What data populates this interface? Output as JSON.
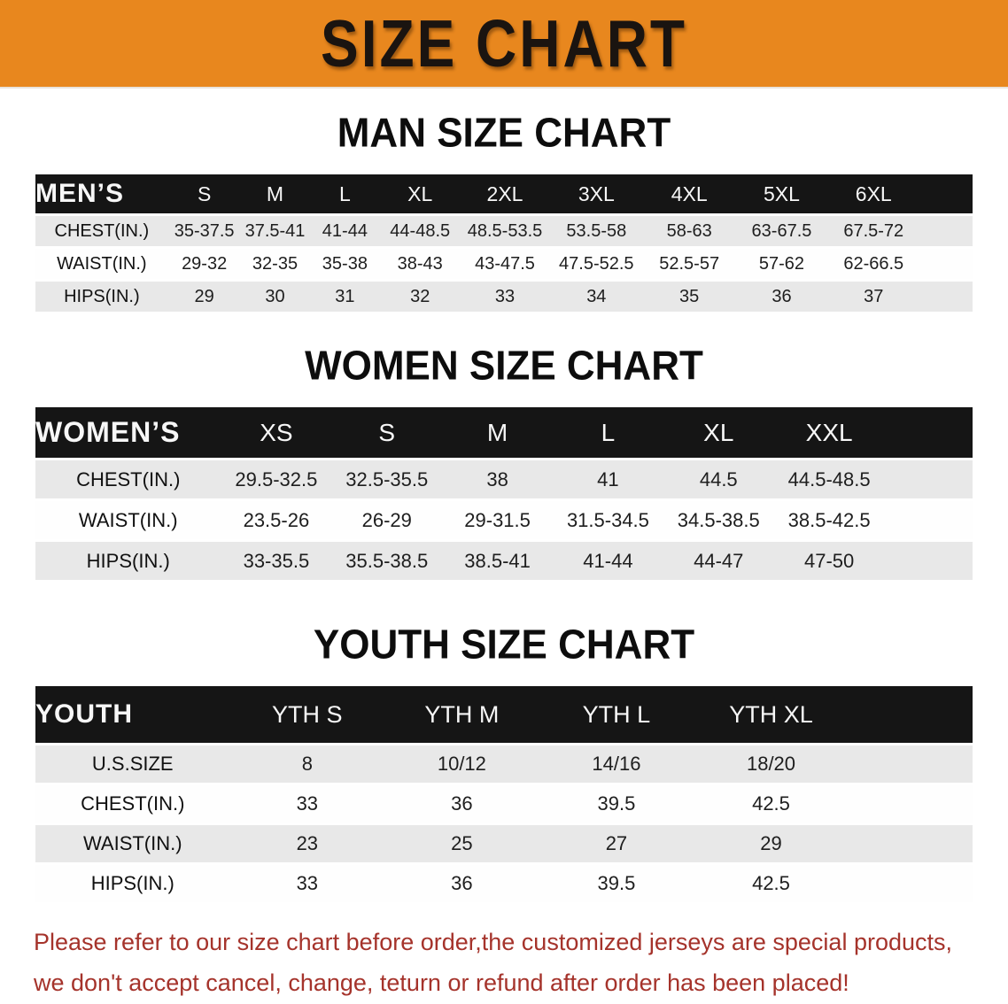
{
  "banner": {
    "title": "SIZE CHART",
    "colors": {
      "background": "#E8871E",
      "text": "#1A1410"
    }
  },
  "table_colors": {
    "header_band_background": "#151515",
    "header_band_text": "#F7F7F7",
    "row_shaded": "#E8E8E8",
    "row_plain": "#FEFEFE"
  },
  "sections": [
    {
      "id": "men",
      "title": "MAN SIZE CHART",
      "group_label": "MEN’S",
      "sizes": [
        "S",
        "M",
        "L",
        "XL",
        "2XL",
        "3XL",
        "4XL",
        "5XL",
        "6XL"
      ],
      "rows": [
        {
          "label": "CHEST(IN.)",
          "values": [
            "35-37.5",
            "37.5-41",
            "41-44",
            "44-48.5",
            "48.5-53.5",
            "53.5-58",
            "58-63",
            "63-67.5",
            "67.5-72"
          ]
        },
        {
          "label": "WAIST(IN.)",
          "values": [
            "29-32",
            "32-35",
            "35-38",
            "38-43",
            "43-47.5",
            "47.5-52.5",
            "52.5-57",
            "57-62",
            "62-66.5"
          ]
        },
        {
          "label": "HIPS(IN.)",
          "values": [
            "29",
            "30",
            "31",
            "32",
            "33",
            "34",
            "35",
            "36",
            "37"
          ]
        }
      ]
    },
    {
      "id": "women",
      "title": "WOMEN SIZE CHART",
      "group_label": "WOMEN’S",
      "sizes": [
        "XS",
        "S",
        "M",
        "L",
        "XL",
        "XXL"
      ],
      "rows": [
        {
          "label": "CHEST(IN.)",
          "values": [
            "29.5-32.5",
            "32.5-35.5",
            "38",
            "41",
            "44.5",
            "44.5-48.5"
          ]
        },
        {
          "label": "WAIST(IN.)",
          "values": [
            "23.5-26",
            "26-29",
            "29-31.5",
            "31.5-34.5",
            "34.5-38.5",
            "38.5-42.5"
          ]
        },
        {
          "label": "HIPS(IN.)",
          "values": [
            "33-35.5",
            "35.5-38.5",
            "38.5-41",
            "41-44",
            "44-47",
            "47-50"
          ]
        }
      ]
    },
    {
      "id": "youth",
      "title": "YOUTH SIZE CHART",
      "group_label": "YOUTH",
      "sizes": [
        "YTH S",
        "YTH M",
        "YTH L",
        "YTH XL"
      ],
      "rows": [
        {
          "label": "U.S.SIZE",
          "values": [
            "8",
            "10/12",
            "14/16",
            "18/20"
          ]
        },
        {
          "label": "CHEST(IN.)",
          "values": [
            "33",
            "36",
            "39.5",
            "42.5"
          ]
        },
        {
          "label": "WAIST(IN.)",
          "values": [
            "23",
            "25",
            "27",
            "29"
          ]
        },
        {
          "label": "HIPS(IN.)",
          "values": [
            "33",
            "36",
            "39.5",
            "42.5"
          ]
        }
      ]
    }
  ],
  "disclaimer": {
    "color": "#A5332B",
    "lines": [
      "Please refer to our size chart before order,the customized jerseys are special products,",
      "we don't accept cancel, change, teturn or refund after order has been placed!"
    ]
  }
}
